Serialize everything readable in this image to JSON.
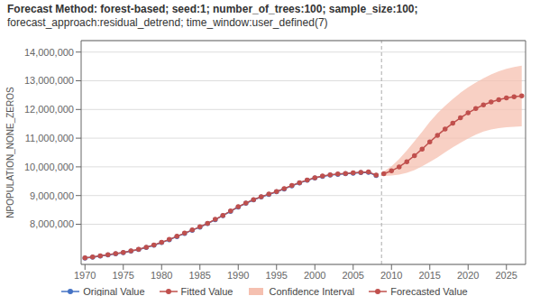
{
  "chart_data": {
    "type": "line",
    "title": "Forecast Method: forest-based; seed:1; number_of_trees:100; sample_size:100;",
    "subtitle": "forecast_approach:residual_detrend; time_window:user_defined(7)",
    "ylabel": "NPOPULATION_NONE_ZEROS",
    "xlim": [
      1969.5,
      2027.5
    ],
    "ylim": [
      6600000,
      14400000
    ],
    "xticks": [
      1970,
      1975,
      1980,
      1985,
      1990,
      1995,
      2000,
      2005,
      2010,
      2015,
      2020,
      2025
    ],
    "yticks": [
      {
        "value": 8000000,
        "label": "8,000,000"
      },
      {
        "value": 9000000,
        "label": "9,000,000"
      },
      {
        "value": 10000000,
        "label": "10,000,000"
      },
      {
        "value": 11000000,
        "label": "11,000,000"
      },
      {
        "value": 12000000,
        "label": "12,000,000"
      },
      {
        "value": 13000000,
        "label": "13,000,000"
      },
      {
        "value": 14000000,
        "label": "14,000,000"
      }
    ],
    "grid": true,
    "legend": "bottom",
    "vline": 2008.7,
    "series": [
      {
        "name": "Original Value",
        "color": "#4472c4",
        "marker": "circle",
        "x": [
          1970,
          1971,
          1972,
          1973,
          1974,
          1975,
          1976,
          1977,
          1978,
          1979,
          1980,
          1981,
          1982,
          1983,
          1984,
          1985,
          1986,
          1987,
          1988,
          1989,
          1990,
          1991,
          1992,
          1993,
          1994,
          1995,
          1996,
          1997,
          1998,
          1999,
          2000,
          2001,
          2002,
          2003,
          2004,
          2005,
          2006,
          2007,
          2008
        ],
        "values": [
          6820000,
          6850000,
          6890000,
          6930000,
          6970000,
          7010000,
          7060000,
          7120000,
          7190000,
          7270000,
          7360000,
          7460000,
          7570000,
          7680000,
          7790000,
          7900000,
          8020000,
          8160000,
          8300000,
          8450000,
          8600000,
          8730000,
          8850000,
          8950000,
          9040000,
          9130000,
          9230000,
          9340000,
          9440000,
          9530000,
          9610000,
          9670000,
          9710000,
          9740000,
          9760000,
          9780000,
          9800000,
          9810000,
          9700000
        ]
      },
      {
        "name": "Fitted Value",
        "color": "#c0504d",
        "marker": "circle",
        "x": [
          1970,
          1971,
          1972,
          1973,
          1974,
          1975,
          1976,
          1977,
          1978,
          1979,
          1980,
          1981,
          1982,
          1983,
          1984,
          1985,
          1986,
          1987,
          1988,
          1989,
          1990,
          1991,
          1992,
          1993,
          1994,
          1995,
          1996,
          1997,
          1998,
          1999,
          2000,
          2001,
          2002,
          2003,
          2004,
          2005,
          2006,
          2007,
          2008
        ],
        "values": [
          6830000,
          6860000,
          6900000,
          6940000,
          6980000,
          7020000,
          7070000,
          7130000,
          7200000,
          7280000,
          7370000,
          7470000,
          7580000,
          7690000,
          7800000,
          7910000,
          8030000,
          8170000,
          8310000,
          8460000,
          8610000,
          8740000,
          8860000,
          8960000,
          9050000,
          9140000,
          9240000,
          9350000,
          9450000,
          9540000,
          9620000,
          9680000,
          9720000,
          9750000,
          9770000,
          9790000,
          9810000,
          9820000,
          9710000
        ]
      },
      {
        "name": "Confidence Interval",
        "type": "area",
        "color": "#f5c0b0",
        "x": [
          2009,
          2010,
          2011,
          2012,
          2013,
          2014,
          2015,
          2016,
          2017,
          2018,
          2019,
          2020,
          2021,
          2022,
          2023,
          2024,
          2025,
          2026,
          2027
        ],
        "lower": [
          9680000,
          9700000,
          9730000,
          9790000,
          9890000,
          10020000,
          10170000,
          10330000,
          10510000,
          10680000,
          10840000,
          10990000,
          11120000,
          11230000,
          11300000,
          11350000,
          11380000,
          11400000,
          11410000
        ],
        "upper": [
          9840000,
          10020000,
          10270000,
          10570000,
          10890000,
          11220000,
          11570000,
          11870000,
          12130000,
          12360000,
          12580000,
          12770000,
          12940000,
          13090000,
          13220000,
          13330000,
          13420000,
          13480000,
          13530000
        ]
      },
      {
        "name": "Forecasted Value",
        "color": "#c0504d",
        "marker": "circle",
        "x": [
          2009,
          2010,
          2011,
          2012,
          2013,
          2014,
          2015,
          2016,
          2017,
          2018,
          2019,
          2020,
          2021,
          2022,
          2023,
          2024,
          2025,
          2026,
          2027
        ],
        "values": [
          9760000,
          9860000,
          10000000,
          10180000,
          10390000,
          10620000,
          10870000,
          11100000,
          11320000,
          11520000,
          11710000,
          11880000,
          12030000,
          12160000,
          12260000,
          12340000,
          12400000,
          12440000,
          12470000
        ]
      }
    ]
  }
}
